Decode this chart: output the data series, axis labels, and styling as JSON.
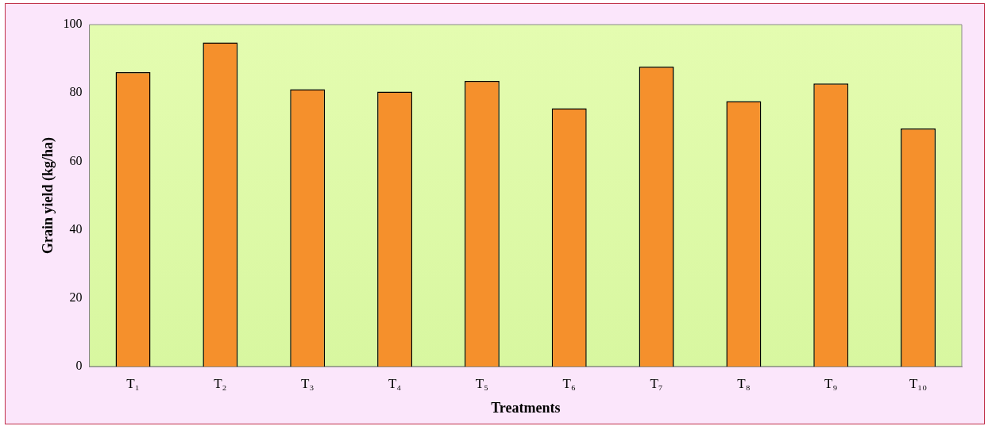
{
  "chart_data": {
    "type": "bar",
    "xlabel": "Treatments",
    "ylabel": "Grain yield (kg/ha)",
    "categories": [
      "T₁",
      "T₂",
      "T₃",
      "T₄",
      "T₅",
      "T₆",
      "T₇",
      "T₈",
      "T₉",
      "T₁₀"
    ],
    "values": [
      86.1,
      94.8,
      81.1,
      80.4,
      83.5,
      75.5,
      87.7,
      77.6,
      82.8,
      69.6
    ],
    "color": "#f5902c",
    "ylim": [
      0,
      100
    ],
    "yticks": [
      0,
      20,
      40,
      60,
      80,
      100
    ],
    "grid": false,
    "legend": false
  }
}
